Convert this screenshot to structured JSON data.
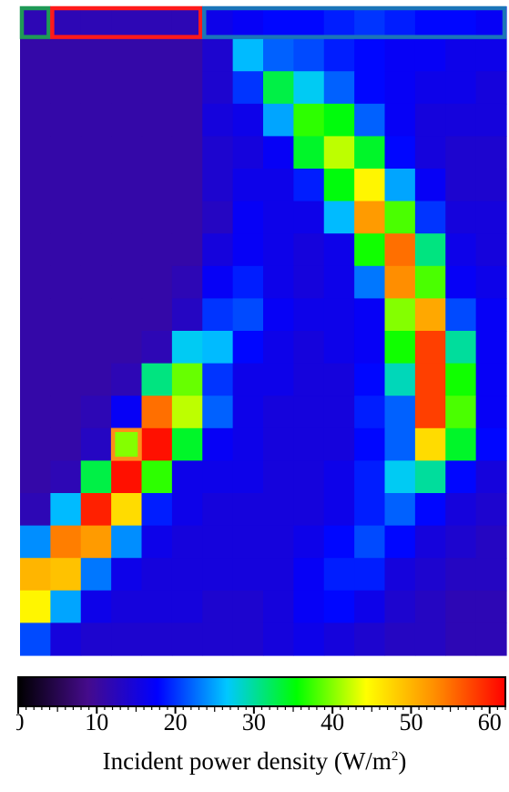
{
  "chart_data": {
    "type": "heatmap",
    "rows": 20,
    "cols": 16,
    "values": [
      [
        12,
        12,
        12,
        12,
        12,
        12,
        16,
        17,
        18,
        18,
        19,
        20,
        19,
        18,
        18,
        17
      ],
      [
        11,
        11,
        11,
        11,
        11,
        11,
        14,
        26,
        22,
        21,
        19,
        18,
        17,
        17,
        16,
        16
      ],
      [
        11,
        11,
        11,
        11,
        11,
        11,
        14,
        20,
        33,
        27,
        22,
        18,
        17,
        16,
        16,
        15
      ],
      [
        11,
        11,
        11,
        11,
        11,
        11,
        15,
        16,
        25,
        37,
        35,
        22,
        17,
        15,
        15,
        15
      ],
      [
        11,
        11,
        11,
        11,
        11,
        11,
        14,
        15,
        17,
        34,
        42,
        34,
        18,
        15,
        14,
        14
      ],
      [
        11,
        11,
        11,
        11,
        11,
        11,
        14,
        16,
        16,
        19,
        35,
        45,
        25,
        17,
        14,
        14
      ],
      [
        11,
        11,
        11,
        11,
        11,
        11,
        13,
        17,
        16,
        16,
        26,
        52,
        38,
        20,
        15,
        15
      ],
      [
        11,
        11,
        11,
        11,
        11,
        11,
        15,
        17,
        16,
        15,
        16,
        36,
        55,
        31,
        16,
        15
      ],
      [
        11,
        11,
        11,
        11,
        11,
        12,
        17,
        19,
        16,
        15,
        16,
        23,
        53,
        38,
        17,
        16
      ],
      [
        11,
        11,
        11,
        11,
        11,
        13,
        20,
        21,
        17,
        16,
        16,
        17,
        40,
        51,
        21,
        17
      ],
      [
        11,
        11,
        11,
        11,
        12,
        27,
        26,
        18,
        16,
        15,
        16,
        17,
        36,
        58,
        30,
        17
      ],
      [
        11,
        11,
        11,
        12,
        31,
        39,
        20,
        16,
        16,
        15,
        15,
        18,
        29,
        58,
        36,
        17
      ],
      [
        11,
        11,
        12,
        17,
        55,
        42,
        22,
        16,
        15,
        15,
        15,
        19,
        22,
        58,
        38,
        17
      ],
      [
        11,
        11,
        13,
        40,
        61,
        34,
        17,
        16,
        15,
        15,
        15,
        18,
        22,
        47,
        34,
        18
      ],
      [
        11,
        12,
        33,
        61,
        37,
        16,
        16,
        16,
        15,
        15,
        16,
        19,
        27,
        30,
        18,
        15
      ],
      [
        12,
        26,
        60,
        47,
        19,
        16,
        15,
        15,
        15,
        15,
        16,
        19,
        22,
        18,
        15,
        14
      ],
      [
        24,
        54,
        52,
        24,
        16,
        15,
        15,
        15,
        15,
        16,
        18,
        21,
        18,
        15,
        14,
        13
      ],
      [
        50,
        49,
        23,
        16,
        15,
        15,
        15,
        15,
        15,
        17,
        19,
        19,
        15,
        14,
        13,
        13
      ],
      [
        45,
        25,
        16,
        15,
        15,
        15,
        14,
        14,
        15,
        17,
        18,
        16,
        14,
        13,
        12,
        12
      ],
      [
        21,
        15,
        14,
        14,
        14,
        14,
        14,
        14,
        15,
        16,
        15,
        14,
        13,
        13,
        12,
        12
      ]
    ],
    "colorbar": {
      "min": 0,
      "max": 62,
      "ticks": [
        0,
        10,
        20,
        30,
        40,
        50,
        60
      ],
      "tick_labels": [
        "0",
        "10",
        "20",
        "30",
        "40",
        "50",
        "60"
      ],
      "label": "Incident power density (W/m",
      "label_sup": "2",
      "label_end": ")",
      "colormap": "jet",
      "stops": [
        "#000000",
        "#450b8c",
        "#0000ff",
        "#00c8ff",
        "#00ff00",
        "#ffff00",
        "#ff8c00",
        "#ff0000"
      ]
    },
    "highlight_boxes": [
      {
        "name": "green",
        "color": "#1f9a56",
        "row": 0,
        "col_start": 0,
        "col_end": 0
      },
      {
        "name": "red",
        "color": "#ff1a1a",
        "row": 0,
        "col_start": 1,
        "col_end": 5
      },
      {
        "name": "blue",
        "color": "#1b75b8",
        "row": 0,
        "col_start": 6,
        "col_end": 15
      },
      {
        "name": "orange",
        "color": "#ff8c1a",
        "row": 13,
        "col_start": 3,
        "col_end": 3
      }
    ]
  }
}
